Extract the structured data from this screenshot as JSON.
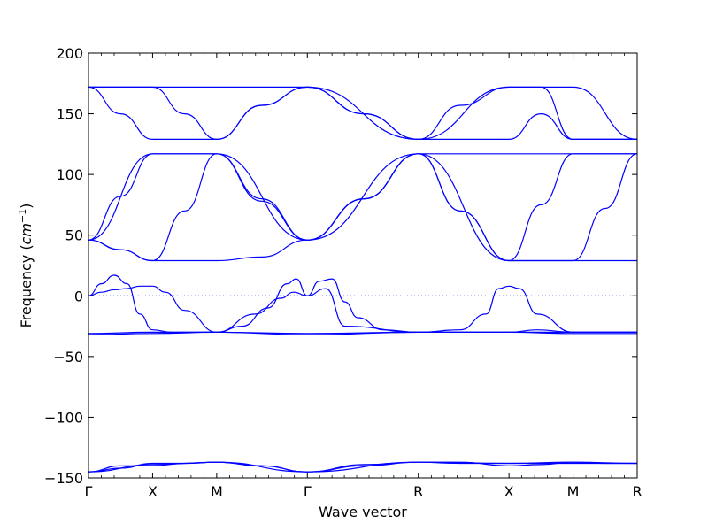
{
  "chart_data": {
    "type": "line",
    "title": "",
    "xlabel": "Wave vector",
    "ylabel": "Frequency",
    "ylabel_unit": "cm",
    "ylabel_unit_exponent": "−1",
    "ylim": [
      -150,
      200
    ],
    "yticks": [
      -150,
      -100,
      -50,
      0,
      50,
      100,
      150,
      200
    ],
    "ytick_labels": [
      "−150",
      "−100",
      "−50",
      "0",
      "50",
      "100",
      "150",
      "200"
    ],
    "xlim": [
      0,
      4.25
    ],
    "high_symmetry_points": [
      {
        "label": "Γ",
        "x": 0
      },
      {
        "label": "X",
        "x": 0.5
      },
      {
        "label": "M",
        "x": 1.0
      },
      {
        "label": "Γ",
        "x": 1.707
      },
      {
        "label": "R",
        "x": 2.573
      },
      {
        "label": "X",
        "x": 3.28
      },
      {
        "label": "M",
        "x": 3.78
      },
      {
        "label": "R",
        "x": 4.28
      }
    ],
    "zero_line": 0,
    "grid": false,
    "line_color": "#0000ff",
    "bands": [
      {
        "x": [
          0,
          0.5,
          1.0,
          1.707,
          2.573,
          3.28,
          3.78,
          4.28
        ],
        "y": [
          172,
          172,
          172,
          172,
          129,
          172,
          172,
          129
        ]
      },
      {
        "x": [
          0,
          0.25,
          0.5,
          0.75,
          1.0,
          1.35,
          1.707,
          2.15,
          2.573,
          2.9,
          3.28,
          3.53,
          3.78,
          4.03,
          4.28
        ],
        "y": [
          172,
          150,
          129,
          129,
          129,
          157,
          172,
          150,
          129,
          157,
          172,
          172,
          129,
          129,
          129
        ]
      },
      {
        "x": [
          0,
          0.25,
          0.5,
          0.75,
          1.0,
          1.35,
          1.707,
          2.15,
          2.573,
          3.28,
          3.53,
          3.78,
          4.03,
          4.28
        ],
        "y": [
          172,
          172,
          172,
          150,
          129,
          157,
          172,
          150,
          129,
          129,
          150,
          129,
          129,
          129
        ]
      },
      {
        "x": [
          0,
          0.5,
          1.0,
          1.707,
          2.573,
          3.28,
          3.78,
          4.28
        ],
        "y": [
          46,
          117,
          117,
          46,
          117,
          117,
          117,
          117
        ]
      },
      {
        "x": [
          0,
          0.25,
          0.5,
          0.75,
          1.0,
          1.35,
          1.707,
          2.15,
          2.573,
          3.28,
          3.53,
          3.78,
          4.03,
          4.28
        ],
        "y": [
          46,
          82,
          117,
          117,
          117,
          78,
          46,
          80,
          117,
          29,
          75,
          117,
          117,
          117
        ]
      },
      {
        "x": [
          0,
          0.25,
          0.5,
          0.75,
          1.0,
          1.35,
          1.707,
          2.15,
          2.573,
          2.9,
          3.28,
          3.53,
          3.78,
          4.03,
          4.28
        ],
        "y": [
          46,
          38,
          29,
          70,
          117,
          80,
          46,
          80,
          117,
          70,
          29,
          29,
          29,
          72,
          117
        ]
      },
      {
        "x": [
          0,
          0.25,
          0.5,
          0.75,
          1.0,
          1.35,
          1.707,
          2.15,
          2.573,
          2.9,
          3.28,
          3.53,
          3.78,
          4.03,
          4.28
        ],
        "y": [
          46,
          38,
          29,
          29,
          29,
          32,
          46,
          80,
          117,
          70,
          29,
          29,
          29,
          29,
          29
        ]
      },
      {
        "x": [
          0,
          0.1,
          0.2,
          0.3,
          0.4,
          0.5,
          0.6,
          0.75,
          1.0,
          1.2,
          1.4,
          1.55,
          1.62,
          1.707,
          1.8,
          1.9,
          2.0,
          2.1,
          2.3,
          2.573,
          2.9,
          3.1,
          3.2,
          3.28,
          3.36,
          3.5,
          3.78,
          4.28
        ],
        "y": [
          0,
          3,
          5,
          6,
          8,
          8,
          3,
          -12,
          -30,
          -25,
          -10,
          10,
          14,
          0,
          12,
          14,
          -5,
          -18,
          -28,
          -30,
          -28,
          -15,
          6,
          8,
          6,
          -15,
          -30,
          -30
        ]
      },
      {
        "x": [
          0,
          0.1,
          0.2,
          0.3,
          0.4,
          0.5,
          0.65,
          0.8,
          1.0,
          1.3,
          1.5,
          1.6,
          1.707,
          1.85,
          2.0,
          2.573,
          3.0,
          3.28,
          3.5,
          3.78,
          4.28
        ],
        "y": [
          0,
          10,
          17,
          10,
          -15,
          -28,
          -30,
          -30,
          -30,
          -15,
          -2,
          3,
          0,
          6,
          -25,
          -30,
          -30,
          -30,
          -28,
          -30,
          -30
        ]
      },
      {
        "x": [
          0,
          0.5,
          1.0,
          1.707,
          2.573,
          3.28,
          3.78,
          4.28
        ],
        "y": [
          -32,
          -31,
          -30,
          -31,
          -30,
          -30,
          -30,
          -30
        ]
      },
      {
        "x": [
          0,
          0.5,
          1.0,
          1.707,
          2.573,
          3.28,
          3.78,
          4.28
        ],
        "y": [
          -31,
          -30,
          -30,
          -32,
          -30,
          -30,
          -31,
          -31
        ]
      },
      {
        "x": [
          0,
          0.25,
          0.5,
          0.75,
          1.0,
          1.35,
          1.707,
          2.15,
          2.573,
          2.9,
          3.28,
          3.53,
          3.78,
          4.03,
          4.28
        ],
        "y": [
          -145,
          -142,
          -138,
          -138,
          -137,
          -140,
          -145,
          -140,
          -137,
          -137,
          -140,
          -139,
          -137,
          -138,
          -138
        ]
      },
      {
        "x": [
          0,
          0.25,
          0.5,
          0.75,
          1.0,
          1.35,
          1.707,
          2.15,
          2.573,
          2.9,
          3.28,
          3.53,
          3.78,
          4.03,
          4.28
        ],
        "y": [
          -145,
          -140,
          -140,
          -138,
          -137,
          -140,
          -145,
          -139,
          -137,
          -138,
          -138,
          -138,
          -138,
          -138,
          -138
        ]
      },
      {
        "x": [
          0,
          0.5,
          1.0,
          1.707,
          2.573,
          3.28,
          3.78,
          4.28
        ],
        "y": [
          -145,
          -139,
          -137,
          -145,
          -137,
          -138,
          -137,
          -138
        ]
      }
    ]
  }
}
